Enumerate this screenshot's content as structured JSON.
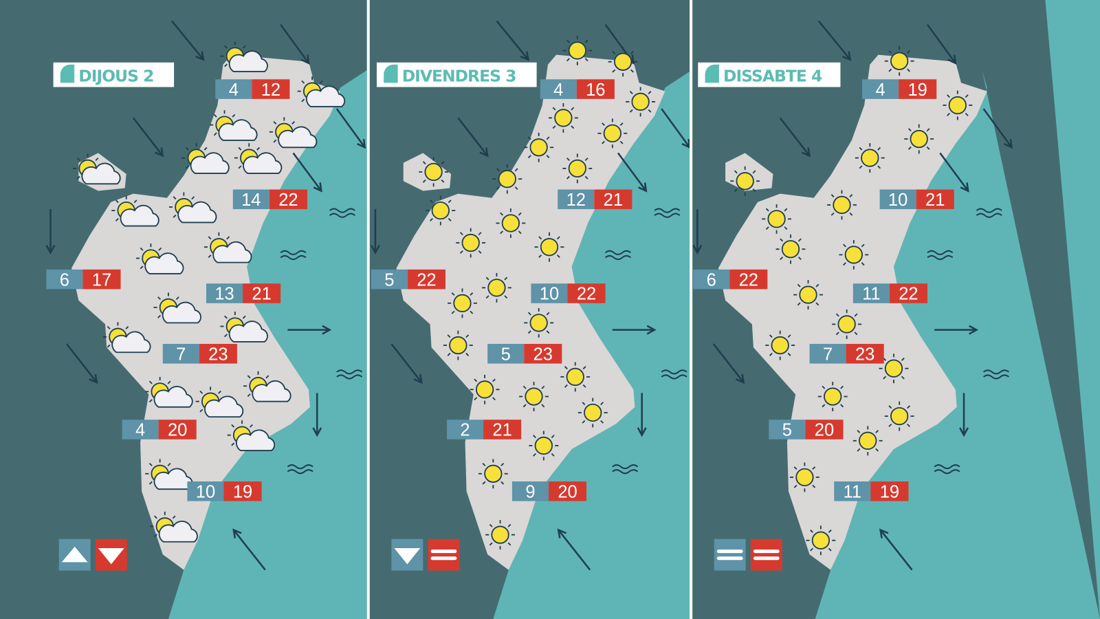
{
  "colors": {
    "background": "#456b70",
    "sea": "#5fb5b5",
    "land": "#dad7d7",
    "min_box": "#5e93a8",
    "max_box": "#d63a2f",
    "sun": "#f7e03a",
    "outline": "#1f3f4f",
    "label_text": "#5bbcb3"
  },
  "panels": [
    {
      "day": "DIJOUS 2",
      "weather_icon": "sun-cloud-icon",
      "min_trend": "up",
      "max_trend": "down",
      "temps": [
        {
          "min": "4",
          "max": "12"
        },
        {
          "min": "14",
          "max": "22"
        },
        {
          "min": "6",
          "max": "17"
        },
        {
          "min": "13",
          "max": "21"
        },
        {
          "min": "7",
          "max": "23"
        },
        {
          "min": "4",
          "max": "20"
        },
        {
          "min": "10",
          "max": "19"
        }
      ]
    },
    {
      "day": "DIVENDRES 3",
      "weather_icon": "sun-icon",
      "min_trend": "down",
      "max_trend": "equal",
      "temps": [
        {
          "min": "4",
          "max": "16"
        },
        {
          "min": "12",
          "max": "21"
        },
        {
          "min": "5",
          "max": "22"
        },
        {
          "min": "10",
          "max": "22"
        },
        {
          "min": "5",
          "max": "23"
        },
        {
          "min": "2",
          "max": "21"
        },
        {
          "min": "9",
          "max": "20"
        }
      ]
    },
    {
      "day": "DISSABTE 4",
      "weather_icon": "sun-icon",
      "min_trend": "equal",
      "max_trend": "equal",
      "temps": [
        {
          "min": "4",
          "max": "19"
        },
        {
          "min": "10",
          "max": "21"
        },
        {
          "min": "6",
          "max": "22"
        },
        {
          "min": "11",
          "max": "22"
        },
        {
          "min": "7",
          "max": "23"
        },
        {
          "min": "5",
          "max": "20"
        },
        {
          "min": "11",
          "max": "19"
        }
      ]
    }
  ]
}
